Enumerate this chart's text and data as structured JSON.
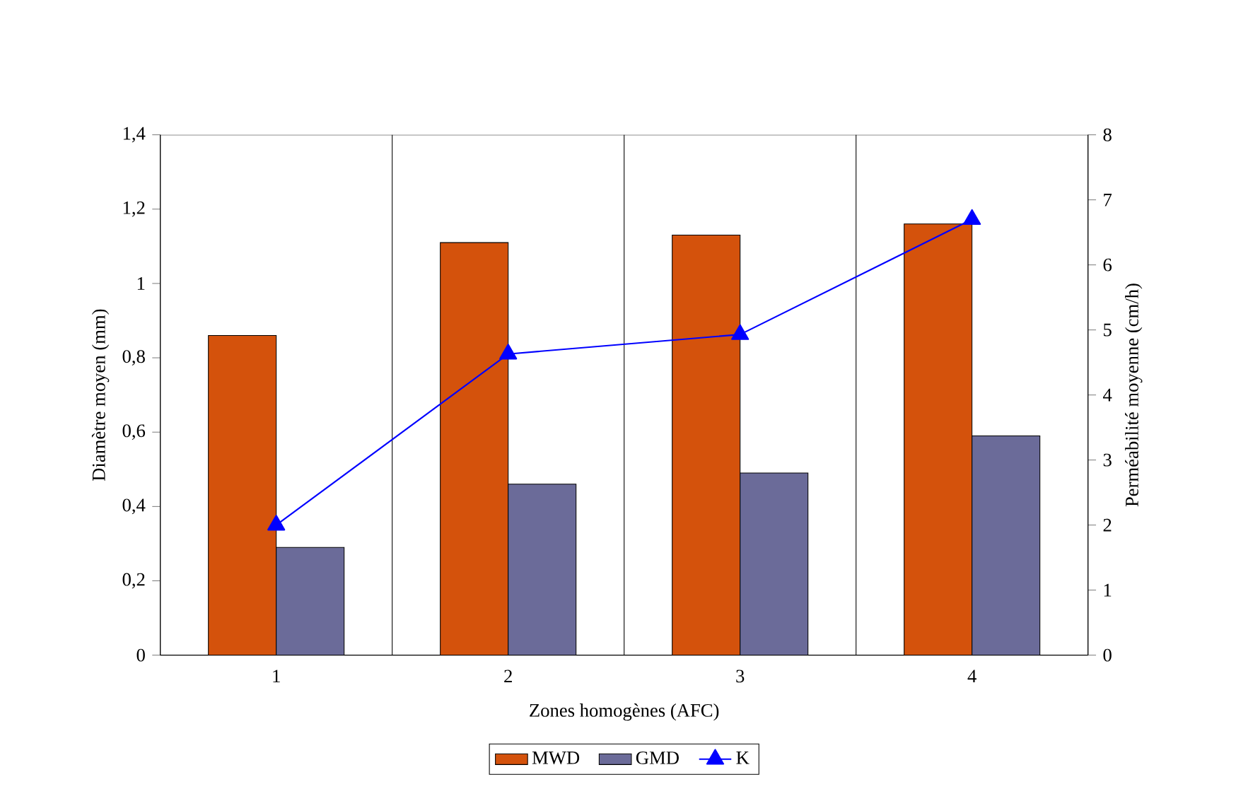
{
  "chart_data": {
    "type": "bar",
    "xlabel": "Zones homogènes (AFC)",
    "ylabel": "Diamètre moyen  (mm)",
    "y2label": "Perméabilité moyenne   (cm/h)",
    "categories": [
      "1",
      "2",
      "3",
      "4"
    ],
    "series": [
      {
        "name": "MWD",
        "color": "#d4520c",
        "values": [
          0.86,
          1.11,
          1.13,
          1.16
        ]
      },
      {
        "name": "GMD",
        "color": "#6b6b99",
        "values": [
          0.29,
          0.46,
          0.49,
          0.59
        ]
      },
      {
        "name": "K",
        "type": "line",
        "axis": "y2",
        "color": "#0000ff",
        "marker": "triangle",
        "values": [
          2.0,
          4.63,
          4.93,
          6.7
        ]
      }
    ],
    "ylim": [
      0,
      1.4
    ],
    "yticks": [
      {
        "value": 0,
        "label": "0"
      },
      {
        "value": 0.2,
        "label": "0,2"
      },
      {
        "value": 0.4,
        "label": "0,4"
      },
      {
        "value": 0.6,
        "label": "0,6"
      },
      {
        "value": 0.8,
        "label": "0,8"
      },
      {
        "value": 1,
        "label": "1"
      },
      {
        "value": 1.2,
        "label": "1,2"
      },
      {
        "value": 1.4,
        "label": "1,4"
      }
    ],
    "y2lim": [
      0,
      8
    ],
    "y2ticks": [
      0,
      1,
      2,
      3,
      4,
      5,
      6,
      7,
      8
    ],
    "grid": "x",
    "legend": "bottom"
  }
}
